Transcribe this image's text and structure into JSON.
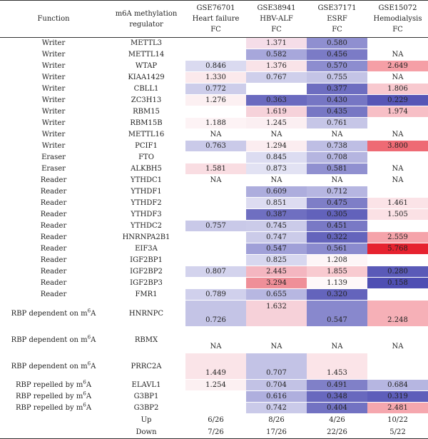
{
  "header": {
    "function": "Function",
    "regulator": "m6A methylation regulator",
    "datasets": [
      {
        "gse": "GSE76701",
        "condition": "Heart failure",
        "metric": "FC"
      },
      {
        "gse": "GSE38941",
        "condition": "HBV-ALF",
        "metric": "FC"
      },
      {
        "gse": "GSE37171",
        "condition": "ESRF",
        "metric": "FC"
      },
      {
        "gse": "GSE15072",
        "condition": "Hemodialysis",
        "metric": "FC"
      }
    ]
  },
  "rows": [
    {
      "function": "Writer",
      "regulator": "METTL3",
      "values": [
        {
          "text": "",
          "bg": "#ffffff"
        },
        {
          "text": "1.371",
          "bg": "#f5dde8"
        },
        {
          "text": "0.580",
          "bg": "#8f8fd0"
        },
        {
          "text": "",
          "bg": "#ffffff"
        }
      ]
    },
    {
      "function": "Writer",
      "regulator": "METTL14",
      "values": [
        {
          "text": "",
          "bg": "#ffffff"
        },
        {
          "text": "0.582",
          "bg": "#a7a7db"
        },
        {
          "text": "0.456",
          "bg": "#7b7bc6"
        },
        {
          "text": "NA",
          "bg": "#ffffff"
        }
      ]
    },
    {
      "function": "Writer",
      "regulator": "WTAP",
      "values": [
        {
          "text": "0.846",
          "bg": "#dadaf0"
        },
        {
          "text": "1.376",
          "bg": "#f9e3e8"
        },
        {
          "text": "0.570",
          "bg": "#8d8dcf"
        },
        {
          "text": "2.649",
          "bg": "#f59fa6"
        }
      ]
    },
    {
      "function": "Writer",
      "regulator": "KIAA1429",
      "values": [
        {
          "text": "1.330",
          "bg": "#fbe9ec"
        },
        {
          "text": "0.767",
          "bg": "#cfcfeb"
        },
        {
          "text": "0.755",
          "bg": "#c4c4e6"
        },
        {
          "text": "NA",
          "bg": "#ffffff"
        }
      ]
    },
    {
      "function": "Writer",
      "regulator": "CBLL1",
      "values": [
        {
          "text": "0.772",
          "bg": "#cdcdea"
        },
        {
          "text": "",
          "bg": "#ffffff"
        },
        {
          "text": "0.377",
          "bg": "#6d6dc0"
        },
        {
          "text": "1.806",
          "bg": "#f8c9cf"
        }
      ]
    },
    {
      "function": "Writer",
      "regulator": "ZC3H13",
      "values": [
        {
          "text": "1.276",
          "bg": "#fcf0f2"
        },
        {
          "text": "0.363",
          "bg": "#6a6abf"
        },
        {
          "text": "0.430",
          "bg": "#7676c4"
        },
        {
          "text": "0.229",
          "bg": "#5656b6"
        }
      ]
    },
    {
      "function": "Writer",
      "regulator": "RBM15",
      "values": [
        {
          "text": "",
          "bg": "#ffffff"
        },
        {
          "text": "1.619",
          "bg": "#f6d2da"
        },
        {
          "text": "0.435",
          "bg": "#7777c4"
        },
        {
          "text": "1.974",
          "bg": "#f7bfc6"
        }
      ]
    },
    {
      "function": "Writer",
      "regulator": "RBM15B",
      "values": [
        {
          "text": "1.188",
          "bg": "#fdf3f5"
        },
        {
          "text": "1.245",
          "bg": "#fbeff2"
        },
        {
          "text": "0.761",
          "bg": "#c6c6e7"
        },
        {
          "text": "",
          "bg": "#ffffff"
        }
      ]
    },
    {
      "function": "Writer",
      "regulator": "METTL16",
      "values": [
        {
          "text": "NA",
          "bg": "#ffffff"
        },
        {
          "text": "NA",
          "bg": "#ffffff"
        },
        {
          "text": "NA",
          "bg": "#ffffff"
        },
        {
          "text": "NA",
          "bg": "#ffffff"
        }
      ]
    },
    {
      "function": "Writer",
      "regulator": "PCIF1",
      "values": [
        {
          "text": "0.763",
          "bg": "#cacae9"
        },
        {
          "text": "1.294",
          "bg": "#fbedf0"
        },
        {
          "text": "0.738",
          "bg": "#bebee4"
        },
        {
          "text": "3.800",
          "bg": "#ee6a74"
        }
      ]
    },
    {
      "function": "Eraser",
      "regulator": "FTO",
      "values": [
        {
          "text": "",
          "bg": "#ffffff"
        },
        {
          "text": "0.845",
          "bg": "#dcdcf1"
        },
        {
          "text": "0.708",
          "bg": "#b5b5e0"
        },
        {
          "text": "",
          "bg": "#ffffff"
        }
      ]
    },
    {
      "function": "Eraser",
      "regulator": "ALKBH5",
      "values": [
        {
          "text": "1.581",
          "bg": "#f9dde2"
        },
        {
          "text": "0.873",
          "bg": "#e2e2f3"
        },
        {
          "text": "0.581",
          "bg": "#9090d0"
        },
        {
          "text": "NA",
          "bg": "#ffffff"
        }
      ]
    },
    {
      "function": "Reader",
      "regulator": "YTHDC1",
      "values": [
        {
          "text": "NA",
          "bg": "#ffffff"
        },
        {
          "text": "NA",
          "bg": "#ffffff"
        },
        {
          "text": "NA",
          "bg": "#ffffff"
        },
        {
          "text": "NA",
          "bg": "#ffffff"
        }
      ]
    },
    {
      "function": "Reader",
      "regulator": "YTHDF1",
      "values": [
        {
          "text": "",
          "bg": "#ffffff"
        },
        {
          "text": "0.609",
          "bg": "#adaddd"
        },
        {
          "text": "0.712",
          "bg": "#b6b6e1"
        },
        {
          "text": "",
          "bg": "#ffffff"
        }
      ]
    },
    {
      "function": "Reader",
      "regulator": "YTHDF2",
      "values": [
        {
          "text": "",
          "bg": "#ffffff"
        },
        {
          "text": "0.851",
          "bg": "#dddcf1"
        },
        {
          "text": "0.475",
          "bg": "#7e7ec7"
        },
        {
          "text": "1.461",
          "bg": "#fbe3e7"
        }
      ]
    },
    {
      "function": "Reader",
      "regulator": "YTHDF3",
      "values": [
        {
          "text": "",
          "bg": "#ffffff"
        },
        {
          "text": "0.387",
          "bg": "#6f6fc1"
        },
        {
          "text": "0.305",
          "bg": "#6262bb"
        },
        {
          "text": "1.505",
          "bg": "#fbe1e5"
        }
      ]
    },
    {
      "function": "Reader",
      "regulator": "YTHDC2",
      "values": [
        {
          "text": "0.757",
          "bg": "#c9c9e8"
        },
        {
          "text": "0.745",
          "bg": "#cbcbe9"
        },
        {
          "text": "0.451",
          "bg": "#7979c5"
        },
        {
          "text": "",
          "bg": "#ffffff"
        }
      ]
    },
    {
      "function": "Reader",
      "regulator": "HNRNPA2B1",
      "values": [
        {
          "text": "",
          "bg": "#ffffff"
        },
        {
          "text": "0.747",
          "bg": "#cbcbe9"
        },
        {
          "text": "0.322",
          "bg": "#6464bc"
        },
        {
          "text": "2.559",
          "bg": "#f5a3aa"
        }
      ]
    },
    {
      "function": "Reader",
      "regulator": "EIF3A",
      "values": [
        {
          "text": "",
          "bg": "#ffffff"
        },
        {
          "text": "0.547",
          "bg": "#a0a0d8"
        },
        {
          "text": "0.561",
          "bg": "#8b8bce"
        },
        {
          "text": "5.768",
          "bg": "#e6222f"
        }
      ]
    },
    {
      "function": "Reader",
      "regulator": "IGF2BP1",
      "values": [
        {
          "text": "",
          "bg": "#ffffff"
        },
        {
          "text": "0.825",
          "bg": "#d7d7ef"
        },
        {
          "text": "1.208",
          "bg": "#fdf5f7"
        },
        {
          "text": "",
          "bg": "#ffffff"
        }
      ]
    },
    {
      "function": "Reader",
      "regulator": "IGF2BP2",
      "values": [
        {
          "text": "0.807",
          "bg": "#d3d3ed"
        },
        {
          "text": "2.445",
          "bg": "#f4b6c0"
        },
        {
          "text": "1.855",
          "bg": "#f8cad0"
        },
        {
          "text": "0.280",
          "bg": "#5a5ab8"
        }
      ]
    },
    {
      "function": "Reader",
      "regulator": "IGF2BP3",
      "values": [
        {
          "text": "",
          "bg": "#ffffff"
        },
        {
          "text": "3.294",
          "bg": "#ef8f98"
        },
        {
          "text": "1.139",
          "bg": "#fef8f9"
        },
        {
          "text": "0.158",
          "bg": "#4e4eb3"
        }
      ]
    },
    {
      "function": "Reader",
      "regulator": "FMR1",
      "values": [
        {
          "text": "0.789",
          "bg": "#d0d0ec"
        },
        {
          "text": "0.655",
          "bg": "#b7b7e1"
        },
        {
          "text": "0.320",
          "bg": "#6464bc"
        },
        {
          "text": "",
          "bg": "#ffffff"
        }
      ]
    },
    {
      "function": "RBP dependent on m",
      "function_sup": "6",
      "function_tail": "A",
      "regulator": "HNRNPC",
      "tall": true,
      "values": [
        {
          "text": "0.726",
          "bg": "#c4c4e6"
        },
        {
          "text": "1.632",
          "top": "1.632",
          "bg": "#f6d1d9"
        },
        {
          "text": "0.547",
          "bg": "#8888cd"
        },
        {
          "text": "2.248",
          "bg": "#f6b0b7"
        }
      ]
    },
    {
      "function": "RBP dependent on m",
      "function_sup": "6",
      "function_tail": "A",
      "regulator": "RBMX",
      "tall": true,
      "values": [
        {
          "text": "NA",
          "bg": "#ffffff"
        },
        {
          "text": "NA",
          "bg": "#ffffff"
        },
        {
          "text": "NA",
          "bg": "#ffffff"
        },
        {
          "text": "NA",
          "bg": "#ffffff"
        }
      ]
    },
    {
      "function": "RBP dependent on m",
      "function_sup": "6",
      "function_tail": "A",
      "regulator": "PRRC2A",
      "tall": true,
      "values": [
        {
          "text": "1.449",
          "bg": "#fae4e8"
        },
        {
          "text": "0.707",
          "bg": "#c3c3e6"
        },
        {
          "text": "1.453",
          "bg": "#fbe4e8"
        },
        {
          "text": "",
          "bg": "#ffffff"
        }
      ]
    },
    {
      "function": "RBP repelled by m",
      "function_sup": "6",
      "function_tail": "A",
      "regulator": "ELAVL1",
      "values": [
        {
          "text": "1.254",
          "bg": "#fcf0f2"
        },
        {
          "text": "0.704",
          "bg": "#c2c2e5"
        },
        {
          "text": "0.491",
          "bg": "#8080c8"
        },
        {
          "text": "0.684",
          "bg": "#b6b6e1"
        }
      ]
    },
    {
      "function": "RBP repelled by m",
      "function_sup": "6",
      "function_tail": "A",
      "regulator": "G3BP1",
      "values": [
        {
          "text": "",
          "bg": "#ffffff"
        },
        {
          "text": "0.616",
          "bg": "#afafde"
        },
        {
          "text": "0.348",
          "bg": "#6868be"
        },
        {
          "text": "0.319",
          "bg": "#5e5eba"
        }
      ]
    },
    {
      "function": "RBP repelled by m",
      "function_sup": "6",
      "function_tail": "A",
      "regulator": "G3BP2",
      "values": [
        {
          "text": "",
          "bg": "#ffffff"
        },
        {
          "text": "0.742",
          "bg": "#cacae9"
        },
        {
          "text": "0.404",
          "bg": "#7272c2"
        },
        {
          "text": "2.481",
          "bg": "#f5a7ae"
        }
      ]
    }
  ],
  "summary": [
    {
      "label": "Up",
      "values": [
        "6/26",
        "8/26",
        "4/26",
        "10/22"
      ]
    },
    {
      "label": "Down",
      "values": [
        "7/26",
        "17/26",
        "22/26",
        "5/22"
      ]
    }
  ]
}
